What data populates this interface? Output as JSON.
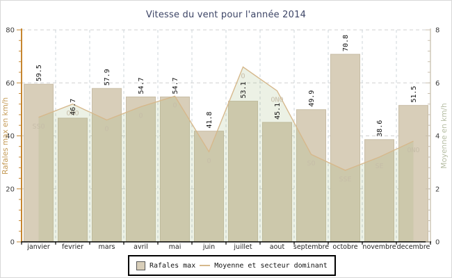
{
  "title": "Vitesse du vent pour l'année 2014",
  "chart_data": {
    "type": "bar",
    "categories": [
      "janvier",
      "fevrier",
      "mars",
      "avril",
      "mai",
      "juin",
      "juillet",
      "aout",
      "septembre",
      "octobre",
      "novembre",
      "decembre"
    ],
    "series": [
      {
        "name": "Rafales max",
        "type": "bar",
        "axis": "left",
        "unit": "km/h",
        "values": [
          59.5,
          46.7,
          57.9,
          54.7,
          54.7,
          41.8,
          53.1,
          45.1,
          49.9,
          70.8,
          38.6,
          51.5
        ]
      },
      {
        "name": "Moyenne et secteur dominant",
        "type": "area",
        "axis": "right",
        "unit": "km/h",
        "values": [
          4.7,
          5.2,
          4.6,
          5.1,
          5.5,
          3.4,
          6.6,
          5.7,
          3.3,
          2.7,
          3.2,
          3.8
        ],
        "sectors": [
          "SSO",
          "ONO",
          "O",
          "O",
          "O",
          "O",
          "O",
          "ONO",
          "SO",
          "SSE",
          "SE",
          "ONO"
        ]
      }
    ],
    "y_left": {
      "label": "Rafales max en km/h",
      "min": 0,
      "max": 80,
      "ticks": [
        0,
        20,
        40,
        60,
        80
      ],
      "minor_step": 4
    },
    "y_right": {
      "label": "Moyenne en km/h",
      "min": 0,
      "max": 8,
      "ticks": [
        0,
        2,
        4,
        6,
        8
      ],
      "minor_step": 0.4
    },
    "grid": true,
    "legend_position": "bottom",
    "value_label_decimals": 1
  },
  "legend": {
    "items": [
      {
        "label": "Rafales max",
        "swatch": "bar"
      },
      {
        "label": "Moyenne et secteur dominant",
        "swatch": "line"
      }
    ]
  },
  "colors": {
    "bar_fill": "#d8ceb9",
    "bar_border": "#c8bda6",
    "area_fill": "rgba(150,180,110,0.18)",
    "area_line": "#d6b88c",
    "sector_label": "#c6bda8",
    "left_axis": "#c6862f",
    "left_axis_title": "#c49a55",
    "right_axis": "#c8bfae",
    "right_axis_title": "#b5bda3",
    "grid_h": "#d0d0d0",
    "grid_v": "#ccd4da",
    "tick_label": "#3a3a3a",
    "month_label": "#222222",
    "value_label": "#111111",
    "title": "#3d4566",
    "x_axis": "#000000"
  }
}
